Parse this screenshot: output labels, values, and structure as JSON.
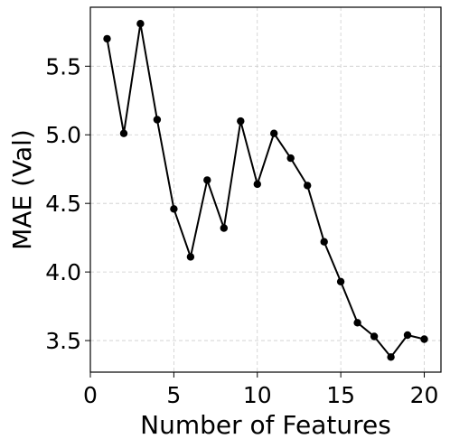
{
  "chart_data": {
    "type": "line",
    "xlabel": "Number of Features",
    "ylabel": "MAE (Val)",
    "xlim": [
      0,
      21
    ],
    "ylim": [
      3.27,
      5.93
    ],
    "xticks": [
      0,
      5,
      10,
      15,
      20
    ],
    "xtick_labels": [
      "0",
      "5",
      "10",
      "15",
      "20"
    ],
    "yticks": [
      3.5,
      4.0,
      4.5,
      5.0,
      5.5
    ],
    "ytick_labels": [
      "3.5",
      "4.0",
      "4.5",
      "5.0",
      "5.5"
    ],
    "grid": true,
    "legend": "none",
    "series": [
      {
        "color": "#000000",
        "marker": "circle",
        "points": [
          {
            "x": 1,
            "y": 5.7
          },
          {
            "x": 2,
            "y": 5.01
          },
          {
            "x": 3,
            "y": 5.81
          },
          {
            "x": 4,
            "y": 5.11
          },
          {
            "x": 5,
            "y": 4.46
          },
          {
            "x": 6,
            "y": 4.11
          },
          {
            "x": 7,
            "y": 4.67
          },
          {
            "x": 8,
            "y": 4.32
          },
          {
            "x": 9,
            "y": 5.1
          },
          {
            "x": 10,
            "y": 4.64
          },
          {
            "x": 11,
            "y": 5.01
          },
          {
            "x": 12,
            "y": 4.83
          },
          {
            "x": 13,
            "y": 4.63
          },
          {
            "x": 14,
            "y": 4.22
          },
          {
            "x": 15,
            "y": 3.93
          },
          {
            "x": 16,
            "y": 3.63
          },
          {
            "x": 17,
            "y": 3.53
          },
          {
            "x": 18,
            "y": 3.38
          },
          {
            "x": 19,
            "y": 3.54
          },
          {
            "x": 20,
            "y": 3.51
          }
        ]
      }
    ]
  }
}
